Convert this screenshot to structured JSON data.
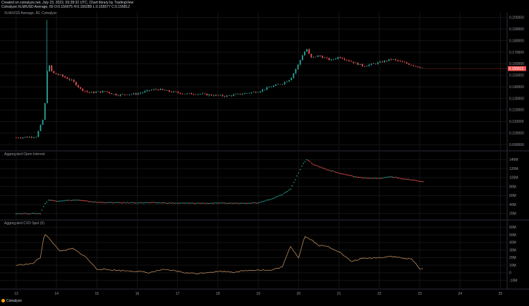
{
  "header": {
    "created": "Created on coinalyze.net, July 23, 2023, 03:28:32 UTC, Chart library by TradingView",
    "ohlc": "Coinalyze:XLM/USD Average, 60 O:0.156075 H:0.156285 L:0.155577 C:0.155812"
  },
  "footer": {
    "brand": "Coinalyze"
  },
  "colors": {
    "up": "#26a69a",
    "down": "#ef5350",
    "cvd_line": "#b98a5c",
    "price_badge": "#ef5350",
    "grid": "#151515",
    "pane_border": "#2a2e39"
  },
  "chart_data": [
    {
      "type": "line",
      "pane": "price",
      "title": "XLM/USD Average, 60, Coinalyze",
      "y_ticks": [
        "0.200000",
        "0.190000",
        "0.180000",
        "0.170000",
        "0.160000",
        "0.150000",
        "0.140000",
        "0.130000",
        "0.120000",
        "0.110000",
        "0.100000",
        "0.090000"
      ],
      "ylim": [
        0.087,
        0.203
      ],
      "last_price": "0.155812",
      "x": [
        13.0,
        13.5,
        13.7,
        13.75,
        13.8,
        13.9,
        14.1,
        14.4,
        14.6,
        14.8,
        15.2,
        15.5,
        16.0,
        16.3,
        16.5,
        16.8,
        17.2,
        17.5,
        17.8,
        18.2,
        18.6,
        19.0,
        19.3,
        19.6,
        19.8,
        20.0,
        20.1,
        20.2,
        20.3,
        20.5,
        20.8,
        21.0,
        21.3,
        21.6,
        22.0,
        22.3,
        22.6,
        23.0,
        23.1
      ],
      "y": [
        0.096,
        0.097,
        0.115,
        0.15,
        0.16,
        0.152,
        0.15,
        0.145,
        0.138,
        0.135,
        0.136,
        0.133,
        0.134,
        0.137,
        0.138,
        0.136,
        0.134,
        0.134,
        0.133,
        0.132,
        0.134,
        0.136,
        0.14,
        0.143,
        0.147,
        0.16,
        0.168,
        0.173,
        0.165,
        0.167,
        0.163,
        0.166,
        0.162,
        0.158,
        0.161,
        0.164,
        0.161,
        0.157,
        0.156
      ]
    },
    {
      "type": "line",
      "pane": "open_interest",
      "title": "Aggregated Open Interest",
      "y_ticks": [
        "140M",
        "120M",
        "100M",
        "80M",
        "60M",
        "40M",
        "20M"
      ],
      "ylim": [
        12,
        150
      ],
      "x": [
        13.0,
        13.6,
        13.7,
        13.8,
        14.0,
        14.5,
        15.0,
        15.5,
        16.0,
        16.5,
        17.0,
        17.5,
        18.0,
        18.5,
        19.0,
        19.3,
        19.6,
        19.8,
        20.0,
        20.1,
        20.2,
        20.4,
        20.7,
        21.0,
        21.5,
        22.0,
        22.3,
        22.6,
        23.0,
        23.1
      ],
      "y": [
        20,
        20,
        40,
        50,
        48,
        50,
        45,
        44,
        44,
        44,
        43,
        43,
        43,
        43,
        44,
        52,
        62,
        75,
        110,
        130,
        140,
        128,
        118,
        110,
        100,
        98,
        102,
        97,
        92,
        90
      ]
    },
    {
      "type": "line",
      "pane": "cvd",
      "title": "Aggregated CVD Spot (0)",
      "y_ticks": [
        "60M",
        "50M",
        "40M",
        "30M",
        "20M",
        "10M",
        "0",
        "-10M"
      ],
      "ylim": [
        -14,
        64
      ],
      "x": [
        13.0,
        13.4,
        13.6,
        13.7,
        13.9,
        14.1,
        14.4,
        14.7,
        15.0,
        15.3,
        15.6,
        16.0,
        16.3,
        16.6,
        16.9,
        17.2,
        17.5,
        17.8,
        18.1,
        18.4,
        18.7,
        19.0,
        19.3,
        19.6,
        19.8,
        20.0,
        20.15,
        20.3,
        20.5,
        20.7,
        21.0,
        21.3,
        21.6,
        22.0,
        22.3,
        22.6,
        22.8,
        23.0,
        23.1
      ],
      "y": [
        10,
        12,
        20,
        52,
        40,
        28,
        32,
        22,
        5,
        4,
        3,
        2,
        0,
        4,
        3,
        0,
        -1,
        1,
        2,
        1,
        3,
        4,
        3,
        8,
        35,
        20,
        48,
        44,
        36,
        35,
        28,
        15,
        19,
        20,
        22,
        19,
        18,
        6,
        5
      ]
    }
  ],
  "x_axis": {
    "ticks": [
      "13",
      "14",
      "15",
      "16",
      "17",
      "18",
      "19",
      "20",
      "21",
      "22",
      "23",
      "24",
      "25"
    ]
  }
}
